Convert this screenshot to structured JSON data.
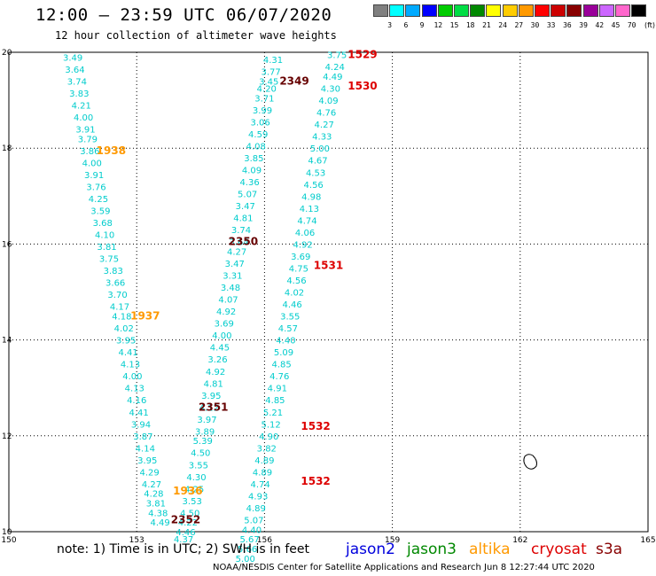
{
  "header": {
    "title": "12:00 – 23:59 UTC 06/07/2020",
    "subtitle": "12 hour collection of altimeter wave heights"
  },
  "colorbar": {
    "unit": "(ft)",
    "labels": [
      "3",
      "6",
      "9",
      "12",
      "15",
      "18",
      "21",
      "24",
      "27",
      "30",
      "33",
      "36",
      "39",
      "42",
      "45",
      "70"
    ],
    "colors": [
      "#808080",
      "#00ffff",
      "#00aaff",
      "#0000ff",
      "#00cc00",
      "#00dd44",
      "#008800",
      "#ffff00",
      "#ffcc00",
      "#ff9900",
      "#ff0000",
      "#cc0000",
      "#880000",
      "#990099",
      "#cc66ff",
      "#ff66cc",
      "#000000"
    ]
  },
  "map": {
    "x_ticks": [
      "150",
      "153",
      "156",
      "159",
      "162",
      "165"
    ],
    "y_ticks": [
      "10",
      "12",
      "14",
      "16",
      "18",
      "20"
    ],
    "x_range": [
      150,
      165
    ],
    "y_range": [
      10,
      20
    ],
    "data_color": "#00cccc",
    "swh_tracks": [
      {
        "name": "track-a",
        "values": [
          {
            "lon": 151.5,
            "lat": 19.9,
            "v": "3.49"
          },
          {
            "lon": 151.55,
            "lat": 19.65,
            "v": "3.64"
          },
          {
            "lon": 151.6,
            "lat": 19.4,
            "v": "3.74"
          },
          {
            "lon": 151.65,
            "lat": 19.15,
            "v": "3.83"
          },
          {
            "lon": 151.7,
            "lat": 18.9,
            "v": "4.21"
          },
          {
            "lon": 151.75,
            "lat": 18.65,
            "v": "4.00"
          },
          {
            "lon": 151.8,
            "lat": 18.4,
            "v": "3.91"
          },
          {
            "lon": 151.85,
            "lat": 18.2,
            "v": "3.79"
          },
          {
            "lon": 151.9,
            "lat": 17.95,
            "v": "3.86"
          },
          {
            "lon": 151.95,
            "lat": 17.7,
            "v": "4.00"
          },
          {
            "lon": 152.0,
            "lat": 17.45,
            "v": "3.91"
          },
          {
            "lon": 152.05,
            "lat": 17.2,
            "v": "3.76"
          },
          {
            "lon": 152.1,
            "lat": 16.95,
            "v": "4.25"
          },
          {
            "lon": 152.15,
            "lat": 16.7,
            "v": "3.59"
          },
          {
            "lon": 152.2,
            "lat": 16.45,
            "v": "3.68"
          },
          {
            "lon": 152.25,
            "lat": 16.2,
            "v": "4.10"
          },
          {
            "lon": 152.3,
            "lat": 15.95,
            "v": "3.81"
          },
          {
            "lon": 152.35,
            "lat": 15.7,
            "v": "3.75"
          },
          {
            "lon": 152.45,
            "lat": 15.45,
            "v": "3.83"
          },
          {
            "lon": 152.5,
            "lat": 15.2,
            "v": "3.66"
          },
          {
            "lon": 152.55,
            "lat": 14.95,
            "v": "3.70"
          },
          {
            "lon": 152.6,
            "lat": 14.7,
            "v": "4.17"
          },
          {
            "lon": 152.65,
            "lat": 14.5,
            "v": "4.18"
          },
          {
            "lon": 152.7,
            "lat": 14.25,
            "v": "4.02"
          },
          {
            "lon": 152.75,
            "lat": 14.0,
            "v": "3.95"
          },
          {
            "lon": 152.8,
            "lat": 13.75,
            "v": "4.41"
          },
          {
            "lon": 152.85,
            "lat": 13.5,
            "v": "4.13"
          },
          {
            "lon": 152.9,
            "lat": 13.25,
            "v": "4.00"
          },
          {
            "lon": 152.95,
            "lat": 13.0,
            "v": "4.13"
          },
          {
            "lon": 153.0,
            "lat": 12.75,
            "v": "4.16"
          },
          {
            "lon": 153.05,
            "lat": 12.5,
            "v": "4.41"
          },
          {
            "lon": 153.1,
            "lat": 12.25,
            "v": "3.94"
          },
          {
            "lon": 153.15,
            "lat": 12.0,
            "v": "3.87"
          },
          {
            "lon": 153.2,
            "lat": 11.75,
            "v": "4.14"
          },
          {
            "lon": 153.25,
            "lat": 11.5,
            "v": "3.95"
          },
          {
            "lon": 153.3,
            "lat": 11.25,
            "v": "4.29"
          },
          {
            "lon": 153.35,
            "lat": 11.0,
            "v": "4.27"
          },
          {
            "lon": 153.4,
            "lat": 10.8,
            "v": "4.28"
          },
          {
            "lon": 153.45,
            "lat": 10.6,
            "v": "3.81"
          },
          {
            "lon": 153.5,
            "lat": 10.4,
            "v": "4.38"
          },
          {
            "lon": 153.55,
            "lat": 10.2,
            "v": "4.49"
          }
        ]
      },
      {
        "name": "track-b",
        "values": [
          {
            "lon": 156.2,
            "lat": 19.85,
            "v": "4.31"
          },
          {
            "lon": 156.15,
            "lat": 19.6,
            "v": "3.77"
          },
          {
            "lon": 156.1,
            "lat": 19.4,
            "v": "3.45"
          },
          {
            "lon": 156.05,
            "lat": 19.25,
            "v": "4.20"
          },
          {
            "lon": 156.0,
            "lat": 19.05,
            "v": "3.71"
          },
          {
            "lon": 155.95,
            "lat": 18.8,
            "v": "3.99"
          },
          {
            "lon": 155.9,
            "lat": 18.55,
            "v": "3.06"
          },
          {
            "lon": 155.85,
            "lat": 18.3,
            "v": "4.59"
          },
          {
            "lon": 155.8,
            "lat": 18.05,
            "v": "4.08"
          },
          {
            "lon": 155.75,
            "lat": 17.8,
            "v": "3.85"
          },
          {
            "lon": 155.7,
            "lat": 17.55,
            "v": "4.09"
          },
          {
            "lon": 155.65,
            "lat": 17.3,
            "v": "4.36"
          },
          {
            "lon": 155.6,
            "lat": 17.05,
            "v": "5.07"
          },
          {
            "lon": 155.55,
            "lat": 16.8,
            "v": "3.47"
          },
          {
            "lon": 155.5,
            "lat": 16.55,
            "v": "4.81"
          },
          {
            "lon": 155.45,
            "lat": 16.3,
            "v": "3.74"
          },
          {
            "lon": 155.4,
            "lat": 16.05,
            "v": "3.64"
          },
          {
            "lon": 155.35,
            "lat": 15.85,
            "v": "4.27"
          },
          {
            "lon": 155.3,
            "lat": 15.6,
            "v": "3.47"
          },
          {
            "lon": 155.25,
            "lat": 15.35,
            "v": "3.31"
          },
          {
            "lon": 155.2,
            "lat": 15.1,
            "v": "3.48"
          },
          {
            "lon": 155.15,
            "lat": 14.85,
            "v": "4.07"
          },
          {
            "lon": 155.1,
            "lat": 14.6,
            "v": "4.92"
          },
          {
            "lon": 155.05,
            "lat": 14.35,
            "v": "3.69"
          },
          {
            "lon": 155.0,
            "lat": 14.1,
            "v": "4.00"
          },
          {
            "lon": 154.95,
            "lat": 13.85,
            "v": "4.45"
          },
          {
            "lon": 154.9,
            "lat": 13.6,
            "v": "3.26"
          },
          {
            "lon": 154.85,
            "lat": 13.35,
            "v": "4.92"
          },
          {
            "lon": 154.8,
            "lat": 13.1,
            "v": "4.81"
          },
          {
            "lon": 154.75,
            "lat": 12.85,
            "v": "3.95"
          },
          {
            "lon": 154.7,
            "lat": 12.6,
            "v": "4.12"
          },
          {
            "lon": 154.65,
            "lat": 12.35,
            "v": "3.97"
          },
          {
            "lon": 154.6,
            "lat": 12.1,
            "v": "3.89"
          },
          {
            "lon": 154.55,
            "lat": 11.9,
            "v": "5.39"
          },
          {
            "lon": 154.5,
            "lat": 11.65,
            "v": "4.50"
          },
          {
            "lon": 154.45,
            "lat": 11.4,
            "v": "3.55"
          },
          {
            "lon": 154.4,
            "lat": 11.15,
            "v": "4.30"
          },
          {
            "lon": 154.35,
            "lat": 10.9,
            "v": "4.25"
          },
          {
            "lon": 154.3,
            "lat": 10.65,
            "v": "3.53"
          },
          {
            "lon": 154.25,
            "lat": 10.4,
            "v": "4.50"
          },
          {
            "lon": 154.2,
            "lat": 10.2,
            "v": "4.22"
          },
          {
            "lon": 154.15,
            "lat": 10.0,
            "v": "4.46"
          },
          {
            "lon": 154.1,
            "lat": 9.85,
            "v": "4.37"
          }
        ]
      },
      {
        "name": "track-c",
        "values": [
          {
            "lon": 157.7,
            "lat": 19.95,
            "v": "3.75"
          },
          {
            "lon": 157.65,
            "lat": 19.7,
            "v": "4.24"
          },
          {
            "lon": 157.6,
            "lat": 19.5,
            "v": "4.49"
          },
          {
            "lon": 157.55,
            "lat": 19.25,
            "v": "4.30"
          },
          {
            "lon": 157.5,
            "lat": 19.0,
            "v": "4.09"
          },
          {
            "lon": 157.45,
            "lat": 18.75,
            "v": "4.76"
          },
          {
            "lon": 157.4,
            "lat": 18.5,
            "v": "4.27"
          },
          {
            "lon": 157.35,
            "lat": 18.25,
            "v": "4.33"
          },
          {
            "lon": 157.3,
            "lat": 18.0,
            "v": "5.00"
          },
          {
            "lon": 157.25,
            "lat": 17.75,
            "v": "4.67"
          },
          {
            "lon": 157.2,
            "lat": 17.5,
            "v": "4.53"
          },
          {
            "lon": 157.15,
            "lat": 17.25,
            "v": "4.56"
          },
          {
            "lon": 157.1,
            "lat": 17.0,
            "v": "4.98"
          },
          {
            "lon": 157.05,
            "lat": 16.75,
            "v": "4.13"
          },
          {
            "lon": 157.0,
            "lat": 16.5,
            "v": "4.74"
          },
          {
            "lon": 156.95,
            "lat": 16.25,
            "v": "4.06"
          },
          {
            "lon": 156.9,
            "lat": 16.0,
            "v": "4.92"
          },
          {
            "lon": 156.85,
            "lat": 15.75,
            "v": "3.69"
          },
          {
            "lon": 156.8,
            "lat": 15.5,
            "v": "4.75"
          },
          {
            "lon": 156.75,
            "lat": 15.25,
            "v": "4.56"
          },
          {
            "lon": 156.7,
            "lat": 15.0,
            "v": "4.02"
          },
          {
            "lon": 156.65,
            "lat": 14.75,
            "v": "4.46"
          },
          {
            "lon": 156.6,
            "lat": 14.5,
            "v": "3.55"
          },
          {
            "lon": 156.55,
            "lat": 14.25,
            "v": "4.57"
          },
          {
            "lon": 156.5,
            "lat": 14.0,
            "v": "4.40"
          },
          {
            "lon": 156.45,
            "lat": 13.75,
            "v": "5.09"
          },
          {
            "lon": 156.4,
            "lat": 13.5,
            "v": "4.85"
          },
          {
            "lon": 156.35,
            "lat": 13.25,
            "v": "4.76"
          },
          {
            "lon": 156.3,
            "lat": 13.0,
            "v": "4.91"
          },
          {
            "lon": 156.25,
            "lat": 12.75,
            "v": "4.85"
          },
          {
            "lon": 156.2,
            "lat": 12.5,
            "v": "5.21"
          },
          {
            "lon": 156.15,
            "lat": 12.25,
            "v": "5.12"
          },
          {
            "lon": 156.1,
            "lat": 12.0,
            "v": "4.90"
          },
          {
            "lon": 156.05,
            "lat": 11.75,
            "v": "3.82"
          },
          {
            "lon": 156.0,
            "lat": 11.5,
            "v": "4.89"
          },
          {
            "lon": 155.95,
            "lat": 11.25,
            "v": "4.89"
          },
          {
            "lon": 155.9,
            "lat": 11.0,
            "v": "4.74"
          },
          {
            "lon": 155.85,
            "lat": 10.75,
            "v": "4.93"
          },
          {
            "lon": 155.8,
            "lat": 10.5,
            "v": "4.89"
          },
          {
            "lon": 155.75,
            "lat": 10.25,
            "v": "5.07"
          },
          {
            "lon": 155.7,
            "lat": 10.05,
            "v": "4.40"
          },
          {
            "lon": 155.65,
            "lat": 9.85,
            "v": "5.67"
          },
          {
            "lon": 155.6,
            "lat": 9.65,
            "v": "5.66"
          },
          {
            "lon": 155.55,
            "lat": 9.45,
            "v": "5.00"
          }
        ]
      }
    ],
    "time_labels": [
      {
        "lon": 158.3,
        "lat": 19.95,
        "v": "1529",
        "color": "#dd0000"
      },
      {
        "lon": 156.7,
        "lat": 19.4,
        "v": "2349",
        "color": "#660000"
      },
      {
        "lon": 158.3,
        "lat": 19.3,
        "v": "1530",
        "color": "#dd0000"
      },
      {
        "lon": 152.4,
        "lat": 17.95,
        "v": "1938",
        "color": "#ff9900"
      },
      {
        "lon": 155.5,
        "lat": 16.05,
        "v": "2350",
        "color": "#660000"
      },
      {
        "lon": 157.5,
        "lat": 15.55,
        "v": "1531",
        "color": "#dd0000"
      },
      {
        "lon": 153.2,
        "lat": 14.5,
        "v": "1937",
        "color": "#ff9900"
      },
      {
        "lon": 154.8,
        "lat": 12.6,
        "v": "2351",
        "color": "#660000"
      },
      {
        "lon": 157.2,
        "lat": 12.2,
        "v": "1532",
        "color": "#dd0000"
      },
      {
        "lon": 157.2,
        "lat": 11.05,
        "v": "1532",
        "color": "#dd0000"
      },
      {
        "lon": 154.2,
        "lat": 10.85,
        "v": "1936",
        "color": "#ff9900"
      },
      {
        "lon": 154.15,
        "lat": 10.25,
        "v": "2352",
        "color": "#660000"
      }
    ]
  },
  "footer": {
    "note": "note:  1) Time is in UTC;  2) SWH is in feet",
    "legend": [
      {
        "label": "jason2",
        "color": "#0000dd"
      },
      {
        "label": "jason3",
        "color": "#008800"
      },
      {
        "label": "altika",
        "color": "#ff9900"
      },
      {
        "label": "cryosat",
        "color": "#dd0000"
      },
      {
        "label": "s3a",
        "color": "#880000"
      }
    ],
    "credit": "NOAA/NESDIS Center for Satellite Applications and Research    Jun  8 12:27:44 UTC 2020"
  }
}
